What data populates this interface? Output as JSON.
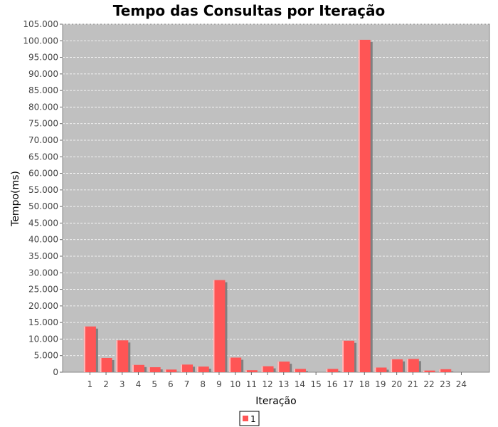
{
  "chart_data": {
    "type": "bar",
    "title": "Tempo das Consultas por Iteração",
    "xlabel": "Iteração",
    "ylabel": "Tempo(ms)",
    "ylim": [
      0,
      105000
    ],
    "grid": true,
    "legend_position": "bottom-center",
    "categories": [
      "1",
      "2",
      "3",
      "4",
      "5",
      "6",
      "7",
      "8",
      "9",
      "10",
      "11",
      "12",
      "13",
      "14",
      "15",
      "16",
      "17",
      "18",
      "19",
      "20",
      "21",
      "22",
      "23",
      "24"
    ],
    "y_ticks": [
      "0",
      "5.000",
      "10.000",
      "15.000",
      "20.000",
      "25.000",
      "30.000",
      "35.000",
      "40.000",
      "45.000",
      "50.000",
      "55.000",
      "60.000",
      "65.000",
      "70.000",
      "75.000",
      "80.000",
      "85.000",
      "90.000",
      "95.000",
      "100.000",
      "105.000"
    ],
    "series": [
      {
        "name": "1",
        "color": "#ff5555",
        "values": [
          13800,
          4300,
          9600,
          2200,
          1500,
          800,
          2300,
          1700,
          27800,
          4400,
          600,
          1800,
          3200,
          1000,
          0,
          1000,
          9500,
          100300,
          1400,
          3900,
          4000,
          500,
          900,
          0
        ]
      }
    ],
    "colors": {
      "plot_background": "#c0c0c0",
      "gridline": "#ffffff",
      "bar": "#ff5555",
      "bar_shadow": "#808080"
    }
  }
}
